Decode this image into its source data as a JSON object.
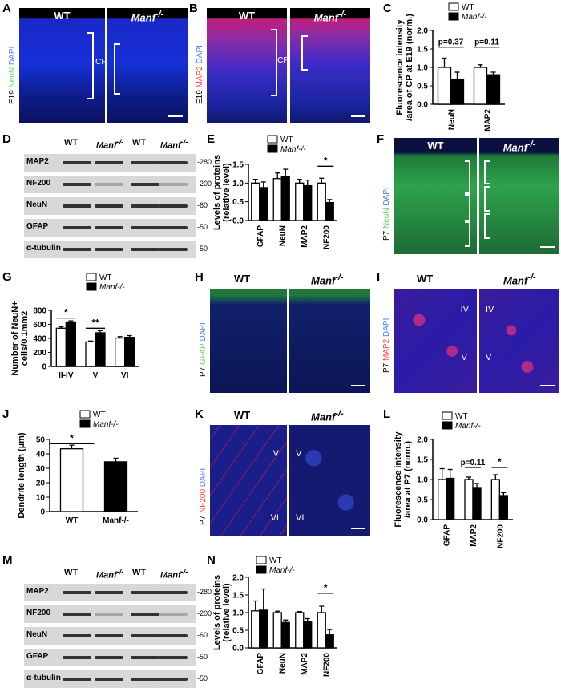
{
  "figure": {
    "panels": {
      "A": {
        "label": "A",
        "wt": "WT",
        "ko": "Manf",
        "ko_sup": "-/-",
        "side": "E19",
        "stain1": "NeuN",
        "stain2": "DAPI",
        "region": "CP"
      },
      "B": {
        "label": "B",
        "wt": "WT",
        "ko": "Manf",
        "ko_sup": "-/-",
        "side": "E19",
        "stain1": "MAP2",
        "stain2": "DAPI",
        "region": "CP"
      },
      "F": {
        "label": "F",
        "wt": "WT",
        "ko": "Manf",
        "ko_sup": "-/-",
        "side": "P7",
        "stain1": "NeuN",
        "stain2": "DAPI"
      },
      "H": {
        "label": "H",
        "wt": "WT",
        "ko": "Manf",
        "ko_sup": "-/-",
        "side": "P7",
        "stain1": "GFAP",
        "stain2": "DAPI"
      },
      "I": {
        "label": "I",
        "wt": "WT",
        "ko": "Manf",
        "ko_sup": "-/-",
        "side": "P7",
        "stain1": "MAP2",
        "stain2": "DAPI",
        "layer1": "IV",
        "layer2": "V"
      },
      "K": {
        "label": "K",
        "wt": "WT",
        "ko": "Manf",
        "ko_sup": "-/-",
        "side": "P7",
        "stain1": "NF200",
        "stain2": "DAPI",
        "layer1": "V",
        "layer2": "VI"
      }
    },
    "blots": {
      "D": {
        "label": "D",
        "heads": [
          "WT",
          "Manf",
          "WT",
          "Manf"
        ],
        "sup": "-/-",
        "proteins": [
          "MAP2",
          "NF200",
          "NeuN",
          "GFAP",
          "α-tubulin"
        ],
        "markers": [
          "-280",
          "-200",
          "-60",
          "-50",
          "-50"
        ]
      },
      "M": {
        "label": "M",
        "heads": [
          "WT",
          "Manf",
          "WT",
          "Manf"
        ],
        "sup": "-/-",
        "proteins": [
          "MAP2",
          "NF200",
          "NeuN",
          "GFAP",
          "α-tubulin"
        ],
        "markers": [
          "-280",
          "-200",
          "-60",
          "-50",
          "-50"
        ]
      }
    }
  },
  "chart_data": [
    {
      "panel": "C",
      "type": "bar",
      "categories": [
        "NeuN",
        "MAP2"
      ],
      "series": [
        {
          "name": "WT",
          "values": [
            1.0,
            1.0
          ],
          "err": [
            0.25,
            0.07
          ]
        },
        {
          "name": "Manf-/-",
          "values": [
            0.67,
            0.8
          ],
          "err": [
            0.2,
            0.07
          ]
        }
      ],
      "ylabel": "Fluorescence intensity /area of CP at E19 (norm.)",
      "yticks": [
        "0.0",
        "0.5",
        "1.0",
        "1.5",
        "2.0"
      ],
      "ylim": [
        0,
        2.0
      ],
      "annotations": [
        "p=0.37",
        "p=0.11"
      ],
      "legend": "top"
    },
    {
      "panel": "E",
      "type": "bar",
      "categories": [
        "GFAP",
        "NeuN",
        "MAP2",
        "NF200"
      ],
      "series": [
        {
          "name": "WT",
          "values": [
            1.0,
            1.12,
            1.0,
            1.0
          ],
          "err": [
            0.1,
            0.15,
            0.1,
            0.13
          ]
        },
        {
          "name": "Manf-/-",
          "values": [
            0.88,
            1.17,
            0.93,
            0.48
          ],
          "err": [
            0.15,
            0.2,
            0.15,
            0.08
          ]
        }
      ],
      "ylabel": "Levels of proteins (relative level)",
      "yticks": [
        "0.0",
        "0.5",
        "1.0",
        "1.5"
      ],
      "ylim": [
        0,
        1.5
      ],
      "annotations": [
        "*"
      ],
      "legend": "top"
    },
    {
      "panel": "G",
      "type": "bar",
      "categories": [
        "II-IV",
        "V",
        "VI"
      ],
      "series": [
        {
          "name": "WT",
          "values": [
            545,
            350,
            405
          ],
          "err": [
            20,
            12,
            20
          ]
        },
        {
          "name": "Manf-/-",
          "values": [
            635,
            480,
            415
          ],
          "err": [
            15,
            30,
            25
          ]
        }
      ],
      "ylabel": "Number of NeuN+ cells/0.1mm2",
      "yticks": [
        "0",
        "200",
        "400",
        "600",
        "800"
      ],
      "ylim": [
        0,
        800
      ],
      "annotations": [
        "*",
        "**"
      ],
      "legend": "top"
    },
    {
      "panel": "J",
      "type": "bar",
      "categories": [
        "WT",
        "Manf-/-"
      ],
      "values": [
        43.5,
        34.5
      ],
      "err": [
        2.5,
        2.5
      ],
      "ylabel": "Dendrite length (µm)",
      "yticks": [
        "0",
        "10",
        "20",
        "30",
        "40",
        "50"
      ],
      "ylim": [
        0,
        50
      ],
      "annotations": [
        "*"
      ],
      "legend": "top"
    },
    {
      "panel": "L",
      "type": "bar",
      "categories": [
        "GFAP",
        "MAP2",
        "NF200"
      ],
      "series": [
        {
          "name": "WT",
          "values": [
            1.0,
            1.0,
            1.0
          ],
          "err": [
            0.27,
            0.06,
            0.12
          ]
        },
        {
          "name": "Manf-/-",
          "values": [
            1.03,
            0.8,
            0.6
          ],
          "err": [
            0.22,
            0.1,
            0.07
          ]
        }
      ],
      "ylabel": "Fluorescence intensity /area at P7 (norm.)",
      "yticks": [
        "0.0",
        "0.5",
        "1.0",
        "1.5",
        "2.0"
      ],
      "ylim": [
        0,
        2.0
      ],
      "annotations": [
        "p=0.11",
        "*"
      ],
      "legend": "top"
    },
    {
      "panel": "N",
      "type": "bar",
      "categories": [
        "GFAP",
        "NeuN",
        "MAP2",
        "NF200"
      ],
      "series": [
        {
          "name": "WT",
          "values": [
            1.05,
            1.0,
            1.0,
            1.0
          ],
          "err": [
            0.28,
            0.04,
            0.03,
            0.18
          ]
        },
        {
          "name": "Manf-/-",
          "values": [
            1.07,
            0.72,
            0.75,
            0.37
          ],
          "err": [
            0.6,
            0.07,
            0.08,
            0.15
          ]
        }
      ],
      "ylabel": "Levels of proteins (relative level)",
      "yticks": [
        "0.0",
        "0.5",
        "1.0",
        "1.5",
        "2.0"
      ],
      "ylim": [
        0,
        2.0
      ],
      "annotations": [
        "*"
      ],
      "legend": "top"
    }
  ]
}
